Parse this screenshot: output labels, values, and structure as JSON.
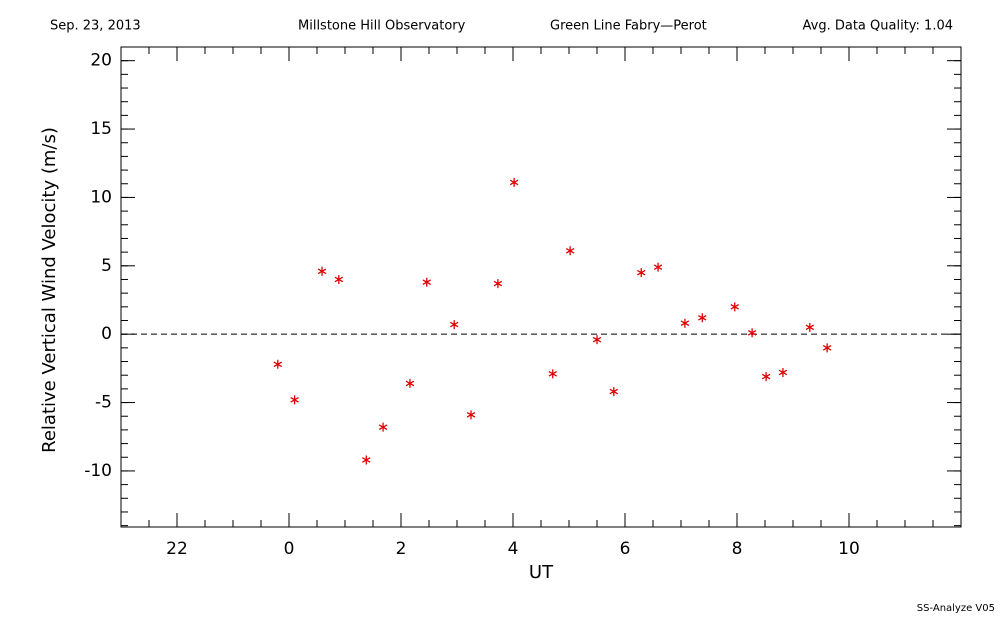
{
  "chart_data": {
    "type": "scatter",
    "header": [
      "Sep. 23, 2013",
      "Millstone Hill Observatory",
      "Green Line Fabry—Perot",
      "Avg. Data Quality: 1.04"
    ],
    "footer": "SS-Analyze V05",
    "x_label": "UT",
    "y_label": "Relative Vertical Wind Velocity (m/s)",
    "xlim": [
      -3,
      12
    ],
    "ylim": [
      -14.1,
      21
    ],
    "xticks": [
      {
        "value": -2,
        "label": "22"
      },
      0,
      2,
      4,
      6,
      8,
      10
    ],
    "yticks": [
      -10,
      -5,
      0,
      5,
      10,
      15,
      20
    ],
    "x_minor_step": 0.5,
    "y_minor_step": 1,
    "reference_line": 0,
    "color": "#e00000",
    "x": [
      -0.2,
      0.1,
      0.59,
      0.89,
      1.38,
      1.68,
      2.16,
      2.46,
      2.95,
      3.25,
      3.73,
      4.02,
      4.71,
      5.02,
      5.5,
      5.8,
      6.29,
      6.59,
      7.07,
      7.38,
      7.96,
      8.27,
      8.52,
      8.82,
      9.3,
      9.61
    ],
    "values": [
      -2.2,
      -4.8,
      4.6,
      4.0,
      -9.2,
      -6.8,
      -3.6,
      3.8,
      0.7,
      -5.9,
      3.7,
      11.1,
      -2.9,
      6.1,
      -0.4,
      -4.2,
      4.5,
      4.9,
      0.8,
      1.2,
      2.0,
      0.1,
      -3.1,
      -2.8,
      0.5,
      -1.0
    ]
  }
}
